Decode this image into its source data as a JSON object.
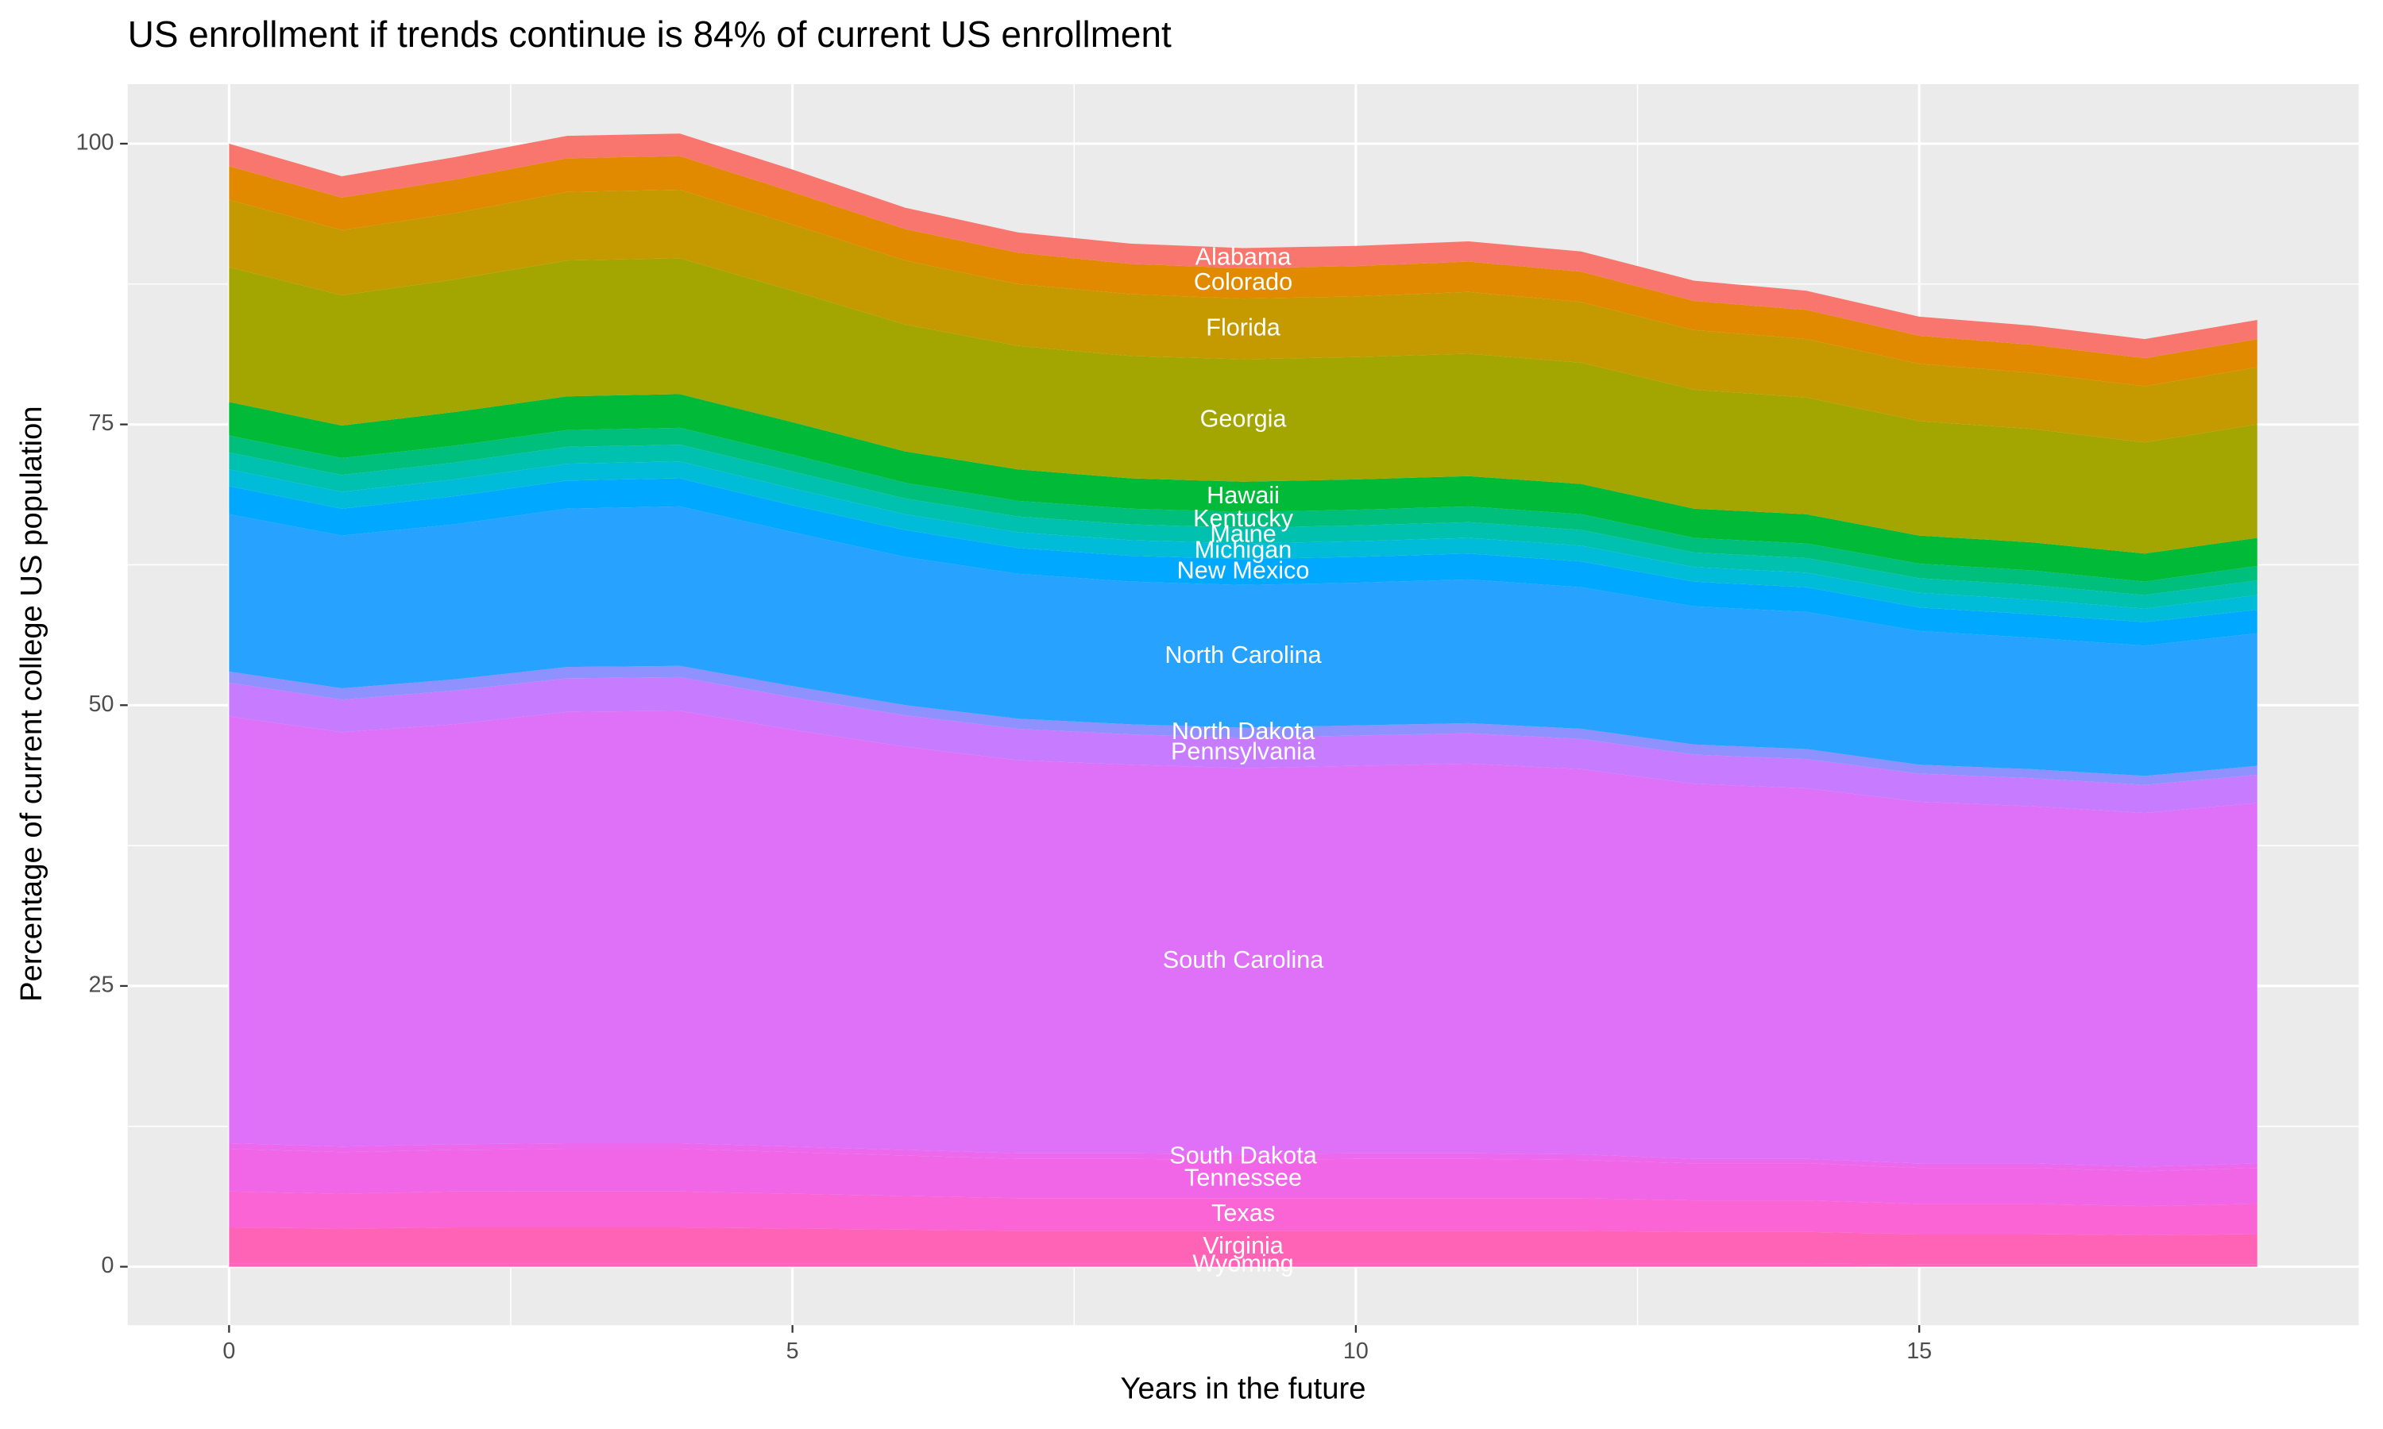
{
  "chart_data": {
    "type": "stacked_area",
    "title": "US enrollment if trends continue is 84% of current US enrollment",
    "x_label": "Years in the future",
    "y_label": "Percentage of current college US population",
    "x": [
      0,
      1,
      2,
      3,
      4,
      5,
      6,
      7,
      8,
      9,
      10,
      11,
      12,
      13,
      14,
      15,
      16,
      17,
      18
    ],
    "xlim": [
      -0.9,
      18.9
    ],
    "xticks": [
      0,
      5,
      10,
      15
    ],
    "ylim": [
      -5.2,
      105.3
    ],
    "yticks": [
      0,
      25,
      50,
      75,
      100
    ],
    "grid": true,
    "series": [
      {
        "name": "Wyoming",
        "color": "#FF62BC",
        "values": [
          0.3,
          0.3,
          0.3,
          0.3,
          0.3,
          0.3,
          0.3,
          0.3,
          0.3,
          0.3,
          0.3,
          0.3,
          0.3,
          0.3,
          0.3,
          0.2,
          0.2,
          0.2,
          0.2
        ]
      },
      {
        "name": "Virginia",
        "color": "#FF63B6",
        "values": [
          3.2,
          3.1,
          3.2,
          3.2,
          3.2,
          3.1,
          3.0,
          2.9,
          2.9,
          2.9,
          2.9,
          2.9,
          2.9,
          2.8,
          2.8,
          2.7,
          2.7,
          2.6,
          2.7
        ]
      },
      {
        "name": "Texas",
        "color": "#FA64D4",
        "values": [
          3.2,
          3.1,
          3.2,
          3.2,
          3.2,
          3.1,
          3.0,
          2.9,
          2.9,
          2.9,
          2.9,
          2.9,
          2.9,
          2.8,
          2.8,
          2.7,
          2.7,
          2.6,
          2.7
        ]
      },
      {
        "name": "Tennessee",
        "color": "#F066E6",
        "values": [
          3.8,
          3.7,
          3.7,
          3.8,
          3.8,
          3.7,
          3.6,
          3.5,
          3.5,
          3.4,
          3.5,
          3.5,
          3.4,
          3.3,
          3.3,
          3.2,
          3.2,
          3.1,
          3.2
        ]
      },
      {
        "name": "South Dakota",
        "color": "#EC68EC",
        "values": [
          0.5,
          0.5,
          0.5,
          0.5,
          0.5,
          0.5,
          0.5,
          0.5,
          0.5,
          0.5,
          0.5,
          0.5,
          0.5,
          0.4,
          0.4,
          0.4,
          0.4,
          0.4,
          0.4
        ]
      },
      {
        "name": "South Carolina",
        "color": "#DF70F8",
        "values": [
          38,
          36.9,
          37.4,
          38.4,
          38.5,
          37.1,
          35.9,
          35,
          34.6,
          34.4,
          34.5,
          34.7,
          34.3,
          33.4,
          33,
          32.2,
          31.8,
          31.5,
          32.1
        ]
      },
      {
        "name": "Pennsylvania",
        "color": "#C77CFF",
        "values": [
          3,
          2.9,
          3,
          3,
          3,
          2.9,
          2.8,
          2.8,
          2.7,
          2.7,
          2.7,
          2.7,
          2.7,
          2.6,
          2.6,
          2.5,
          2.5,
          2.5,
          2.5
        ]
      },
      {
        "name": "North Dakota",
        "color": "#8F91FF",
        "values": [
          1,
          1,
          1,
          1,
          1,
          1,
          0.9,
          0.9,
          0.9,
          0.9,
          0.9,
          0.9,
          0.9,
          0.9,
          0.9,
          0.8,
          0.8,
          0.8,
          0.8
        ]
      },
      {
        "name": "North Carolina",
        "color": "#27A2FF",
        "values": [
          14,
          13.6,
          13.8,
          14.1,
          14.2,
          13.7,
          13.2,
          12.9,
          12.7,
          12.7,
          12.7,
          12.8,
          12.6,
          12.3,
          12.2,
          11.9,
          11.7,
          11.6,
          11.8
        ]
      },
      {
        "name": "New Mexico",
        "color": "#00A9FF",
        "values": [
          2.5,
          2.4,
          2.5,
          2.5,
          2.5,
          2.4,
          2.4,
          2.3,
          2.3,
          2.3,
          2.3,
          2.3,
          2.3,
          2.2,
          2.2,
          2.1,
          2.1,
          2.1,
          2.1
        ]
      },
      {
        "name": "Michigan",
        "color": "#00BCD8",
        "values": [
          1.5,
          1.5,
          1.5,
          1.5,
          1.5,
          1.5,
          1.4,
          1.4,
          1.4,
          1.4,
          1.4,
          1.4,
          1.4,
          1.3,
          1.3,
          1.3,
          1.3,
          1.2,
          1.3
        ]
      },
      {
        "name": "Maine",
        "color": "#00C0AF",
        "values": [
          1.5,
          1.5,
          1.5,
          1.5,
          1.5,
          1.5,
          1.4,
          1.4,
          1.4,
          1.4,
          1.4,
          1.4,
          1.4,
          1.3,
          1.3,
          1.3,
          1.3,
          1.2,
          1.3
        ]
      },
      {
        "name": "Kentucky",
        "color": "#00BF7D",
        "values": [
          1.5,
          1.5,
          1.5,
          1.5,
          1.5,
          1.5,
          1.4,
          1.4,
          1.4,
          1.4,
          1.4,
          1.4,
          1.4,
          1.3,
          1.3,
          1.3,
          1.3,
          1.2,
          1.3
        ]
      },
      {
        "name": "Hawaii",
        "color": "#00BA38",
        "values": [
          3,
          2.9,
          3,
          3,
          3,
          2.9,
          2.8,
          2.8,
          2.7,
          2.7,
          2.7,
          2.7,
          2.7,
          2.6,
          2.6,
          2.5,
          2.5,
          2.5,
          2.5
        ]
      },
      {
        "name": "Georgia",
        "color": "#A3A500",
        "values": [
          12,
          11.6,
          11.8,
          12.1,
          12.1,
          11.7,
          11.3,
          11,
          10.9,
          10.9,
          10.9,
          10.9,
          10.8,
          10.6,
          10.4,
          10.2,
          10.1,
          9.9,
          10.1
        ]
      },
      {
        "name": "Florida",
        "color": "#C49A00",
        "values": [
          6,
          5.8,
          5.9,
          6.1,
          6.1,
          5.9,
          5.7,
          5.5,
          5.5,
          5.4,
          5.4,
          5.5,
          5.4,
          5.3,
          5.2,
          5.1,
          5,
          5,
          5.1
        ]
      },
      {
        "name": "Colorado",
        "color": "#E18A00",
        "values": [
          3,
          2.9,
          3,
          3,
          3,
          2.9,
          2.8,
          2.8,
          2.7,
          2.7,
          2.7,
          2.7,
          2.7,
          2.6,
          2.6,
          2.5,
          2.5,
          2.5,
          2.5
        ]
      },
      {
        "name": "Alabama",
        "color": "#F8766D",
        "values": [
          2,
          1.9,
          2,
          2,
          2,
          2,
          1.9,
          1.8,
          1.8,
          1.8,
          1.8,
          1.8,
          1.8,
          1.8,
          1.7,
          1.7,
          1.7,
          1.7,
          1.7
        ]
      }
    ]
  }
}
